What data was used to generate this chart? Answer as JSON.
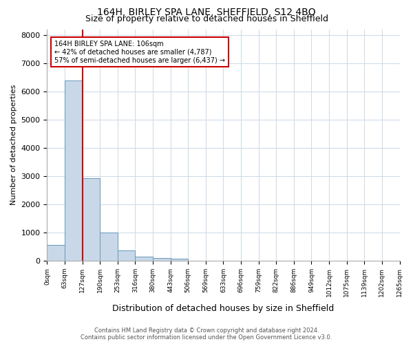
{
  "title": "164H, BIRLEY SPA LANE, SHEFFIELD, S12 4BQ",
  "subtitle": "Size of property relative to detached houses in Sheffield",
  "xlabel": "Distribution of detached houses by size in Sheffield",
  "ylabel": "Number of detached properties",
  "bin_labels": [
    "0sqm",
    "63sqm",
    "127sqm",
    "190sqm",
    "253sqm",
    "316sqm",
    "380sqm",
    "443sqm",
    "506sqm",
    "569sqm",
    "633sqm",
    "696sqm",
    "759sqm",
    "822sqm",
    "886sqm",
    "949sqm",
    "1012sqm",
    "1075sqm",
    "1139sqm",
    "1202sqm",
    "1265sqm"
  ],
  "values": [
    570,
    6380,
    2920,
    1000,
    370,
    150,
    100,
    65,
    0,
    0,
    0,
    0,
    0,
    0,
    0,
    0,
    0,
    0,
    0,
    0
  ],
  "bar_color": "#c8d8e8",
  "bar_edge_color": "#6699bb",
  "highlight_color": "#cc0000",
  "annotation_line1": "164H BIRLEY SPA LANE: 106sqm",
  "annotation_line2": "← 42% of detached houses are smaller (4,787)",
  "annotation_line3": "57% of semi-detached houses are larger (6,437) →",
  "annotation_box_color": "#ffffff",
  "annotation_box_edge": "#cc0000",
  "ylim": [
    0,
    8200
  ],
  "yticks": [
    0,
    1000,
    2000,
    3000,
    4000,
    5000,
    6000,
    7000,
    8000
  ],
  "footer_line1": "Contains HM Land Registry data © Crown copyright and database right 2024.",
  "footer_line2": "Contains public sector information licensed under the Open Government Licence v3.0.",
  "background_color": "#ffffff",
  "grid_color": "#d0dce8"
}
